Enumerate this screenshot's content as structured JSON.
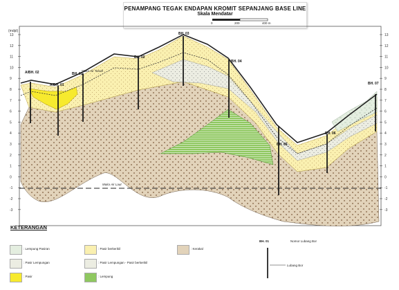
{
  "header": {
    "title": "PENAMPANG TEGAK ENDAPAN  KROMIT SEPANJANG BASE LINE",
    "subtitle": "Skala Mendatar",
    "scale_labels": [
      "0",
      "200",
      "400 m"
    ]
  },
  "axis": {
    "unit": "(mdpl)",
    "ticks": [
      "13",
      "12",
      "11",
      "10",
      "9",
      "8",
      "7",
      "6",
      "5",
      "4",
      "3",
      "2",
      "1",
      "0",
      "-1",
      "-2",
      "-3"
    ]
  },
  "boreholes": [
    "A/BH. 02",
    "A/BH. 01",
    "BH. 01",
    "BH. 02",
    "BH. 03",
    "BH. 04",
    "BH. 05",
    "BH. 06",
    "BH. 07"
  ],
  "annotations": {
    "groundwater": "Muka Air Tanah",
    "sea_level": "Muka Air Laut"
  },
  "legend": {
    "title": "KETERANGAN",
    "items": [
      {
        "label": ": Lempung Pasiran",
        "pattern": "lempung-pasiran"
      },
      {
        "label": ": Pasir Lempungan",
        "pattern": "pasir-lempungan"
      },
      {
        "label": ": Pasir",
        "pattern": "pasir"
      },
      {
        "label": ": Pasir berkerikil",
        "pattern": "pasir-berkerikil"
      },
      {
        "label": ": Pasir Lempungan - Pasir berkerikil",
        "pattern": "pasir-lempungan-berkerikil"
      },
      {
        "label": ": Lempung",
        "pattern": "lempung"
      },
      {
        "label": ": Kerakal",
        "pattern": "kerakal"
      }
    ],
    "bh_label_example": "BH. 01",
    "bh_name_label": "Nomor Lubang Bor",
    "bh_line_label": "Lubang Bor"
  },
  "colors": {
    "pasir": "#f7ea2e",
    "pasir_berkerikil": "#faf0b0",
    "kerakal": "#e2d3ba",
    "kerakal_dot": "#7b5a3a",
    "lempung": "#8fc860",
    "lempung_pasiran": "#e4eee0",
    "grid": "#555555"
  }
}
